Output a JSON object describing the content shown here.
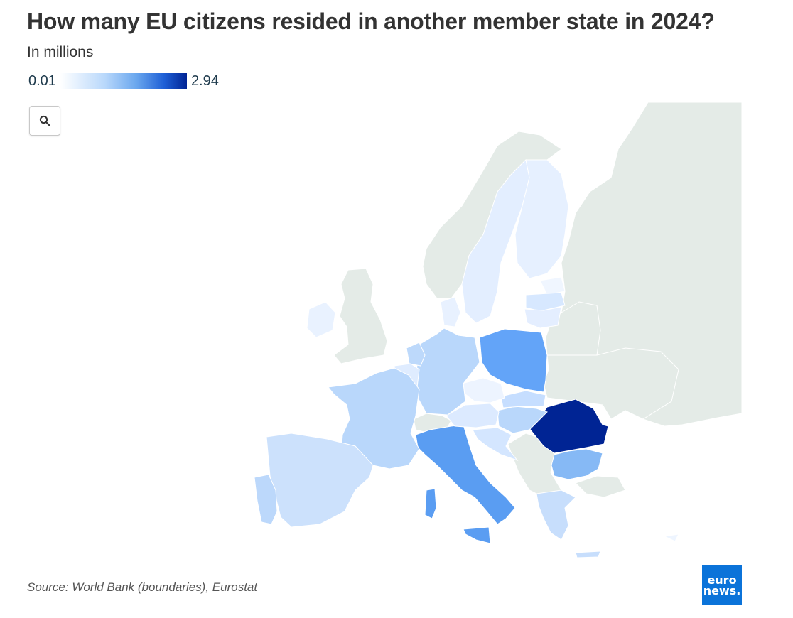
{
  "header": {
    "title": "How many EU citizens resided in another member state in 2024?",
    "subtitle": "In millions"
  },
  "legend": {
    "min": "0.01",
    "max": "2.94"
  },
  "controls": {
    "zoom_icon": "search-icon"
  },
  "source": {
    "prefix": "Source: ",
    "link1": "World Bank (boundaries)",
    "separator": ", ",
    "link2": "Eurostat"
  },
  "logo": {
    "line1": "euro",
    "line2": "news."
  },
  "colors": {
    "non_eu_land": "#e4ebe7",
    "scale_low": "#ffffff",
    "scale_high": "#002494",
    "logo_bg": "#0b73d9"
  },
  "map_values": {
    "Romania": 2.94,
    "Poland": 1.0,
    "Italy": 1.1,
    "Bulgaria": 0.7,
    "Portugal": 0.25,
    "Spain": 0.3,
    "France": 0.35,
    "Germany": 0.4,
    "Greece": 0.3,
    "Croatia": 0.3,
    "Hungary": 0.35,
    "Slovakia": 0.25,
    "Lithuania": 0.15,
    "Latvia": 0.15,
    "Netherlands": 0.25,
    "Belgium": 0.15,
    "Sweden": 0.08,
    "Finland": 0.06,
    "Ireland": 0.1
  }
}
